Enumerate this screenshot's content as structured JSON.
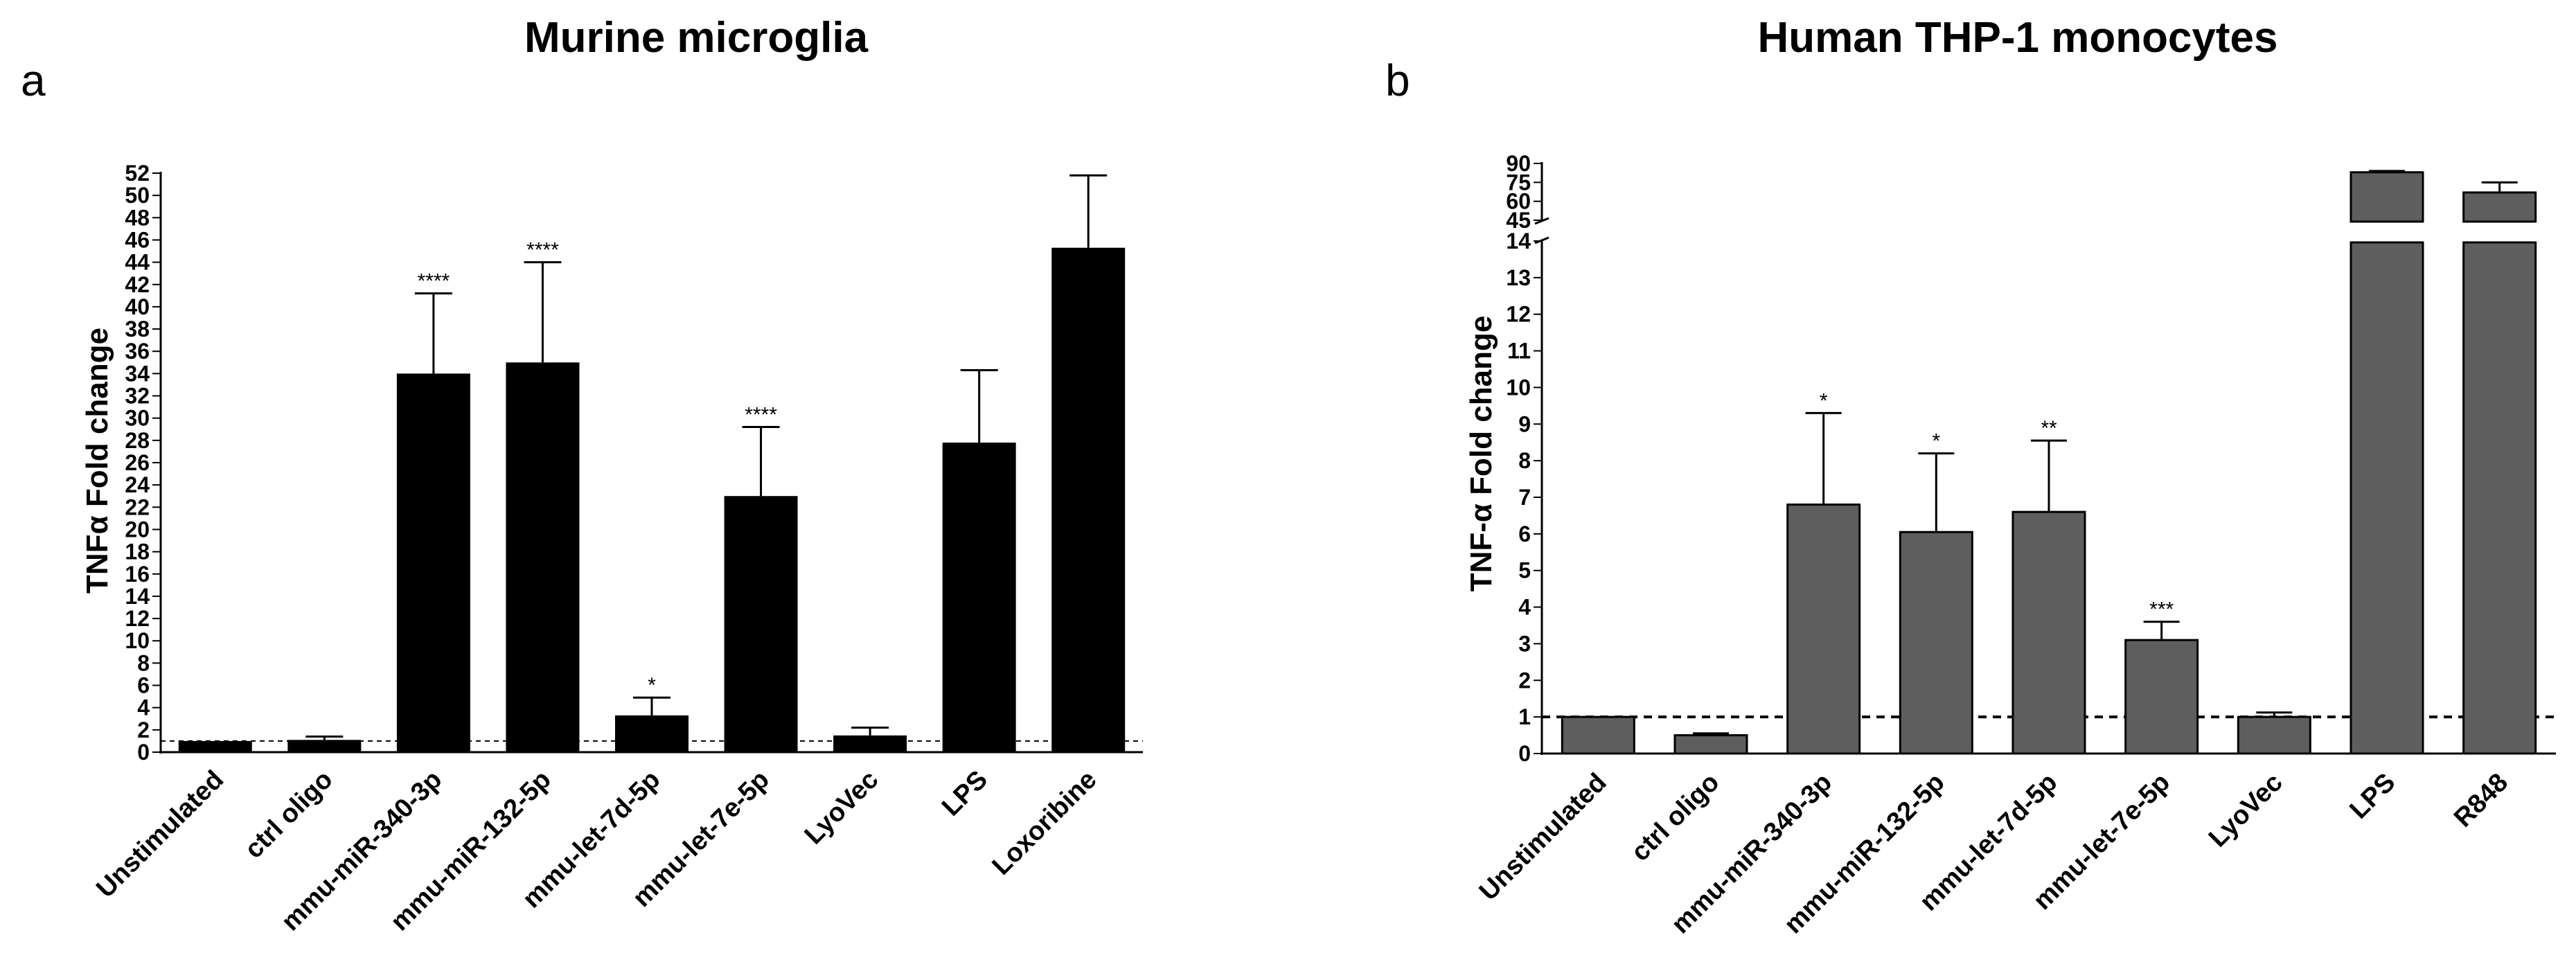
{
  "chart_data": [
    {
      "type": "bar",
      "panel": "a",
      "title": "Murine microglia",
      "xlabel": "",
      "ylabel": "TNFα Fold change",
      "ylim": [
        0,
        52
      ],
      "yticks": [
        0,
        2,
        4,
        6,
        8,
        10,
        12,
        14,
        16,
        18,
        20,
        22,
        24,
        26,
        28,
        30,
        32,
        34,
        36,
        38,
        40,
        42,
        44,
        46,
        48,
        50,
        52
      ],
      "baseline": 1,
      "bar_color": "#000000",
      "categories": [
        "Unstimulated",
        "ctrl oligo",
        "mmu-miR-340-3p",
        "mmu-miR-132-5p",
        "mmu-let-7d-5p",
        "mmu-let-7e-5p",
        "LyoVec",
        "LPS",
        "Loxoribine"
      ],
      "values": [
        1.0,
        1.1,
        34.0,
        35.0,
        3.3,
        23.0,
        1.5,
        27.8,
        45.3
      ],
      "errors": [
        0.0,
        0.3,
        7.2,
        9.0,
        1.6,
        6.2,
        0.7,
        6.5,
        6.5
      ],
      "significance": [
        "",
        "",
        "****",
        "****",
        "*",
        "****",
        "",
        "",
        ""
      ]
    },
    {
      "type": "bar",
      "panel": "b",
      "title": "Human THP-1 monocytes",
      "xlabel": "",
      "ylabel": "TNF-α Fold change",
      "ylim": [
        0,
        90
      ],
      "axis_break": [
        14,
        45
      ],
      "yticks_lower": [
        0,
        1,
        2,
        3,
        4,
        5,
        6,
        7,
        8,
        9,
        10,
        11,
        12,
        13,
        14
      ],
      "yticks_upper": [
        45,
        60,
        75,
        90
      ],
      "baseline": 1,
      "bar_color": "#5e5e5e",
      "categories": [
        "Unstimulated",
        "ctrl oligo",
        "mmu-miR-340-3p",
        "mmu-miR-132-5p",
        "mmu-let-7d-5p",
        "mmu-let-7e-5p",
        "LyoVec",
        "LPS",
        "R848"
      ],
      "values": [
        1.0,
        0.5,
        6.8,
        6.05,
        6.6,
        3.1,
        1.0,
        83,
        67
      ],
      "errors": [
        0.0,
        0.05,
        2.5,
        2.15,
        1.95,
        0.5,
        0.12,
        1,
        8
      ],
      "significance": [
        "",
        "",
        "*",
        "*",
        "**",
        "***",
        "",
        "",
        ""
      ]
    }
  ]
}
